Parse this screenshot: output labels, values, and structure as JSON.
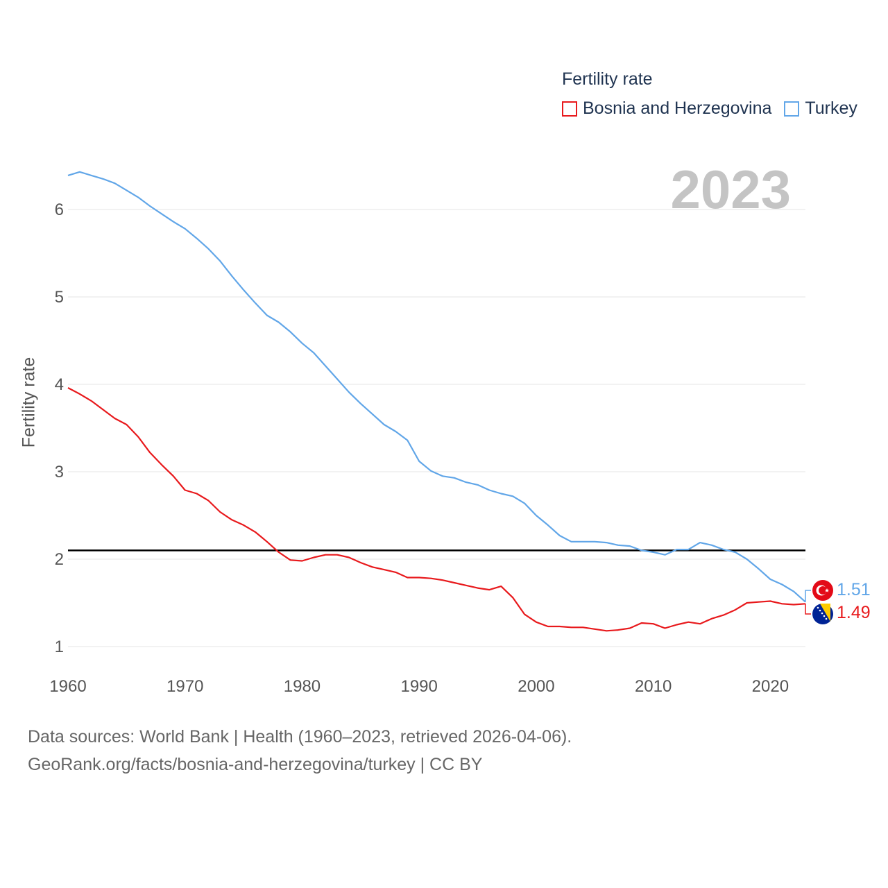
{
  "legend": {
    "title": "Fertility rate",
    "items": [
      {
        "name": "Bosnia and Herzegovina",
        "color": "#e8191c"
      },
      {
        "name": "Turkey",
        "color": "#61a6e8"
      }
    ]
  },
  "year_label": "2023",
  "source": {
    "line1": "Data sources: World Bank | Health (1960–2023, retrieved 2026-04-06).",
    "line2": "GeoRank.org/facts/bosnia-and-herzegovina/turkey | CC BY"
  },
  "end_labels": {
    "turkey": "1.51",
    "bosnia": "1.49"
  },
  "colors": {
    "bosnia": "#e8191c",
    "turkey": "#61a6e8",
    "reference": "#000000",
    "grid": "#e6e6e6"
  },
  "chart_data": {
    "type": "line",
    "title": "Fertility rate",
    "xlabel": "",
    "ylabel": "Fertility rate",
    "xlim": [
      1960,
      2023
    ],
    "ylim": [
      0.75,
      6.6
    ],
    "xticks": [
      1960,
      1970,
      1980,
      1990,
      2000,
      2010,
      2020
    ],
    "yticks": [
      1,
      2,
      3,
      4,
      5,
      6
    ],
    "reference_line": 2.1,
    "x": [
      1960,
      1961,
      1962,
      1963,
      1964,
      1965,
      1966,
      1967,
      1968,
      1969,
      1970,
      1971,
      1972,
      1973,
      1974,
      1975,
      1976,
      1977,
      1978,
      1979,
      1980,
      1981,
      1982,
      1983,
      1984,
      1985,
      1986,
      1987,
      1988,
      1989,
      1990,
      1991,
      1992,
      1993,
      1994,
      1995,
      1996,
      1997,
      1998,
      1999,
      2000,
      2001,
      2002,
      2003,
      2004,
      2005,
      2006,
      2007,
      2008,
      2009,
      2010,
      2011,
      2012,
      2013,
      2014,
      2015,
      2016,
      2017,
      2018,
      2019,
      2020,
      2021,
      2022,
      2023
    ],
    "series": [
      {
        "name": "Bosnia and Herzegovina",
        "color": "#e8191c",
        "values": [
          3.96,
          3.89,
          3.81,
          3.71,
          3.61,
          3.54,
          3.4,
          3.22,
          3.08,
          2.95,
          2.79,
          2.75,
          2.67,
          2.54,
          2.45,
          2.39,
          2.31,
          2.2,
          2.08,
          1.99,
          1.98,
          2.02,
          2.05,
          2.05,
          2.02,
          1.96,
          1.91,
          1.88,
          1.85,
          1.79,
          1.79,
          1.78,
          1.76,
          1.73,
          1.7,
          1.67,
          1.65,
          1.69,
          1.56,
          1.37,
          1.28,
          1.23,
          1.23,
          1.22,
          1.22,
          1.2,
          1.18,
          1.19,
          1.21,
          1.27,
          1.26,
          1.21,
          1.25,
          1.28,
          1.26,
          1.32,
          1.36,
          1.42,
          1.5,
          1.51,
          1.52,
          1.49,
          1.48,
          1.49
        ]
      },
      {
        "name": "Turkey",
        "color": "#61a6e8",
        "values": [
          6.39,
          6.43,
          6.39,
          6.35,
          6.3,
          6.22,
          6.14,
          6.04,
          5.95,
          5.86,
          5.78,
          5.67,
          5.55,
          5.41,
          5.24,
          5.08,
          4.93,
          4.79,
          4.71,
          4.6,
          4.47,
          4.36,
          4.21,
          4.06,
          3.91,
          3.78,
          3.66,
          3.54,
          3.46,
          3.36,
          3.12,
          3.01,
          2.95,
          2.93,
          2.88,
          2.85,
          2.79,
          2.75,
          2.72,
          2.64,
          2.5,
          2.39,
          2.27,
          2.2,
          2.2,
          2.2,
          2.19,
          2.16,
          2.15,
          2.1,
          2.08,
          2.05,
          2.11,
          2.11,
          2.19,
          2.16,
          2.11,
          2.08,
          2.0,
          1.89,
          1.77,
          1.71,
          1.63,
          1.51
        ]
      }
    ]
  }
}
